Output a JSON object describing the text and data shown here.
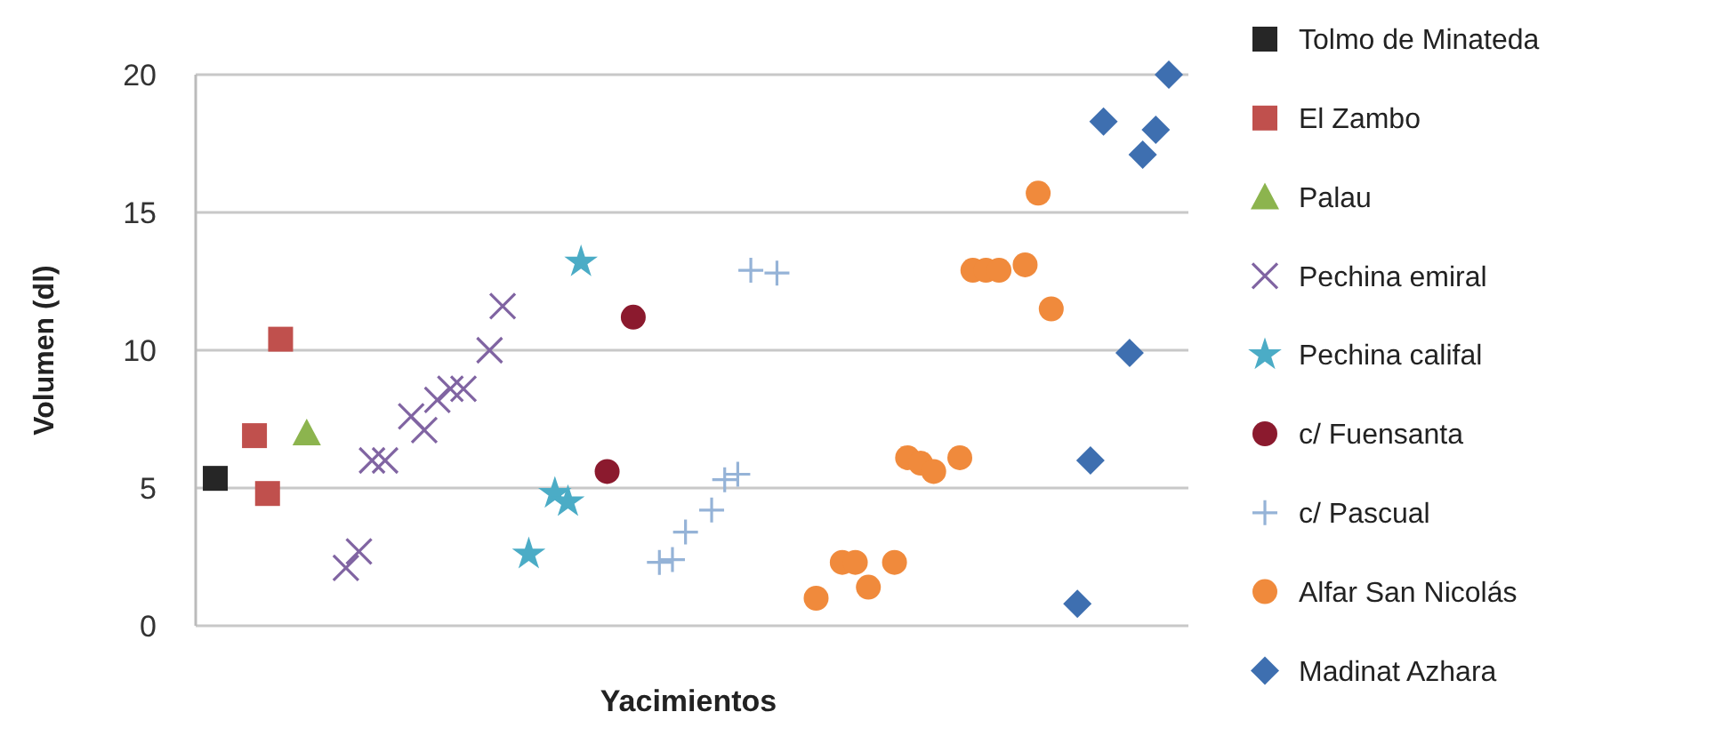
{
  "chart_data": {
    "type": "scatter",
    "xlabel": "Yacimientos",
    "ylabel": "Volumen (dl)",
    "ylim": [
      0,
      20
    ],
    "yticks": [
      0,
      5,
      10,
      15,
      20
    ],
    "grid": "y",
    "legend": "right",
    "tick_labels": "y",
    "categories": [
      null,
      null,
      null,
      null,
      null,
      null,
      null,
      null,
      null,
      null,
      null,
      null,
      null,
      null,
      null,
      null,
      null,
      null,
      null,
      null,
      null,
      null,
      null,
      null,
      null,
      null,
      null,
      null,
      null,
      null,
      null,
      null,
      null,
      null,
      null,
      null,
      null,
      null,
      null,
      null,
      null,
      null,
      null,
      null,
      null,
      null,
      null,
      null,
      null,
      null,
      null,
      null,
      null,
      null,
      null,
      null,
      null,
      null,
      null,
      null,
      null,
      null,
      null,
      null,
      null,
      null,
      null,
      null,
      null,
      null,
      null,
      null,
      null,
      null,
      null,
      null
    ],
    "series": [
      {
        "name": "Tolmo de Minateda",
        "color": "#262626",
        "marker": "square",
        "values": [
          null,
          5.35,
          null,
          null,
          null,
          null,
          null,
          null,
          null,
          null,
          null,
          null,
          null,
          null,
          null,
          null,
          null,
          null,
          null,
          null,
          null,
          null,
          null,
          null,
          null,
          null,
          null,
          null,
          null,
          null,
          null,
          null,
          null,
          null,
          null,
          null,
          null,
          null,
          null,
          null,
          null,
          null,
          null,
          null,
          null,
          null,
          null,
          null,
          null,
          null,
          null,
          null,
          null,
          null,
          null,
          null,
          null,
          null,
          null,
          null,
          null,
          null,
          null,
          null,
          null,
          null,
          null,
          null,
          null,
          null,
          null,
          null,
          null,
          null,
          null,
          null
        ]
      },
      {
        "name": "El Zambo",
        "color": "#c0504d",
        "marker": "square",
        "values": [
          null,
          null,
          null,
          null,
          6.9,
          4.8,
          10.4,
          null,
          null,
          null,
          null,
          null,
          null,
          null,
          null,
          null,
          null,
          null,
          null,
          null,
          null,
          null,
          null,
          null,
          null,
          null,
          null,
          null,
          null,
          null,
          null,
          null,
          null,
          null,
          null,
          null,
          null,
          null,
          null,
          null,
          null,
          null,
          null,
          null,
          null,
          null,
          null,
          null,
          null,
          null,
          null,
          null,
          null,
          null,
          null,
          null,
          null,
          null,
          null,
          null,
          null,
          null,
          null,
          null,
          null,
          null,
          null,
          null,
          null,
          null,
          null,
          null,
          null,
          null,
          null,
          null
        ]
      },
      {
        "name": "Palau",
        "color": "#8cb44e",
        "marker": "triangle",
        "values": [
          null,
          null,
          null,
          null,
          null,
          null,
          null,
          null,
          7.0,
          null,
          null,
          null,
          null,
          null,
          null,
          null,
          null,
          null,
          null,
          null,
          null,
          null,
          null,
          null,
          null,
          null,
          null,
          null,
          null,
          null,
          null,
          null,
          null,
          null,
          null,
          null,
          null,
          null,
          null,
          null,
          null,
          null,
          null,
          null,
          null,
          null,
          null,
          null,
          null,
          null,
          null,
          null,
          null,
          null,
          null,
          null,
          null,
          null,
          null,
          null,
          null,
          null,
          null,
          null,
          null,
          null,
          null,
          null,
          null,
          null,
          null,
          null,
          null,
          null,
          null,
          null
        ]
      },
      {
        "name": "Pechina emiral",
        "color": "#8064a2",
        "marker": "x",
        "values": [
          null,
          null,
          null,
          null,
          null,
          null,
          null,
          null,
          null,
          null,
          null,
          2.1,
          2.7,
          6.0,
          6.0,
          null,
          7.6,
          7.1,
          8.2,
          8.6,
          8.6,
          null,
          10.0,
          11.6,
          null,
          null,
          null,
          null,
          null,
          null,
          null,
          null,
          null,
          null,
          null,
          null,
          null,
          null,
          null,
          null,
          null,
          null,
          null,
          null,
          null,
          null,
          null,
          null,
          null,
          null,
          null,
          null,
          null,
          null,
          null,
          null,
          null,
          null,
          null,
          null,
          null,
          null,
          null,
          null,
          null,
          null,
          null,
          null,
          null,
          null,
          null,
          null,
          null,
          null,
          null,
          null
        ]
      },
      {
        "name": "Pechina califal",
        "color": "#4bacc6",
        "marker": "star",
        "values": [
          null,
          null,
          null,
          null,
          null,
          null,
          null,
          null,
          null,
          null,
          null,
          null,
          null,
          null,
          null,
          null,
          null,
          null,
          null,
          null,
          null,
          null,
          null,
          null,
          null,
          2.6,
          null,
          4.8,
          4.5,
          13.2,
          null,
          null,
          null,
          null,
          null,
          null,
          null,
          null,
          null,
          null,
          null,
          null,
          null,
          null,
          null,
          null,
          null,
          null,
          null,
          null,
          null,
          null,
          null,
          null,
          null,
          null,
          null,
          null,
          null,
          null,
          null,
          null,
          null,
          null,
          null,
          null,
          null,
          null,
          null,
          null,
          null,
          null,
          null,
          null,
          null,
          null
        ]
      },
      {
        "name": "c/ Fuensanta",
        "color": "#8b1a2e",
        "marker": "circle",
        "values": [
          null,
          null,
          null,
          null,
          null,
          null,
          null,
          null,
          null,
          null,
          null,
          null,
          null,
          null,
          null,
          null,
          null,
          null,
          null,
          null,
          null,
          null,
          null,
          null,
          null,
          null,
          null,
          null,
          null,
          null,
          null,
          5.6,
          null,
          11.2,
          null,
          null,
          null,
          null,
          null,
          null,
          null,
          null,
          null,
          null,
          null,
          null,
          null,
          null,
          null,
          null,
          null,
          null,
          null,
          null,
          null,
          null,
          null,
          null,
          null,
          null,
          null,
          null,
          null,
          null,
          null,
          null,
          null,
          null,
          null,
          null,
          null,
          null,
          null,
          null,
          null,
          null
        ]
      },
      {
        "name": "c/ Pascual",
        "color": "#95b3d7",
        "marker": "cross",
        "values": [
          null,
          null,
          null,
          null,
          null,
          null,
          null,
          null,
          null,
          null,
          null,
          null,
          null,
          null,
          null,
          null,
          null,
          null,
          null,
          null,
          null,
          null,
          null,
          null,
          null,
          null,
          null,
          null,
          null,
          null,
          null,
          null,
          null,
          null,
          null,
          2.3,
          2.4,
          3.4,
          null,
          4.2,
          5.3,
          5.5,
          12.9,
          null,
          12.8,
          null,
          null,
          null,
          null,
          null,
          null,
          null,
          null,
          null,
          null,
          null,
          null,
          null,
          null,
          null,
          null,
          null,
          null,
          null,
          null,
          null,
          null,
          null,
          null,
          null,
          null,
          null,
          null,
          null,
          null,
          null
        ]
      },
      {
        "name": "Alfar San Nicolás",
        "color": "#f08a3c",
        "marker": "circle",
        "values": [
          null,
          null,
          null,
          null,
          null,
          null,
          null,
          null,
          null,
          null,
          null,
          null,
          null,
          null,
          null,
          null,
          null,
          null,
          null,
          null,
          null,
          null,
          null,
          null,
          null,
          null,
          null,
          null,
          null,
          null,
          null,
          null,
          null,
          null,
          null,
          null,
          null,
          null,
          null,
          null,
          null,
          null,
          null,
          null,
          null,
          null,
          null,
          1.0,
          null,
          2.3,
          2.3,
          1.4,
          null,
          2.3,
          6.1,
          5.9,
          5.6,
          null,
          6.1,
          12.9,
          12.9,
          12.9,
          null,
          13.1,
          15.7,
          11.5,
          null,
          null,
          null,
          null,
          null,
          null,
          null,
          null,
          null,
          null
        ]
      },
      {
        "name": "Madinat Azhara",
        "color": "#3e6fb0",
        "marker": "diamond",
        "values": [
          null,
          null,
          null,
          null,
          null,
          null,
          null,
          null,
          null,
          null,
          null,
          null,
          null,
          null,
          null,
          null,
          null,
          null,
          null,
          null,
          null,
          null,
          null,
          null,
          null,
          null,
          null,
          null,
          null,
          null,
          null,
          null,
          null,
          null,
          null,
          null,
          null,
          null,
          null,
          null,
          null,
          null,
          null,
          null,
          null,
          null,
          null,
          null,
          null,
          null,
          null,
          null,
          null,
          null,
          null,
          null,
          null,
          null,
          null,
          null,
          null,
          null,
          null,
          null,
          null,
          null,
          null,
          0.8,
          6.0,
          18.3,
          null,
          9.9,
          17.1,
          18.0,
          20.0,
          null
        ]
      }
    ]
  }
}
